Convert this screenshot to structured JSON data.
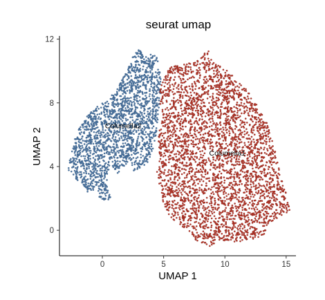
{
  "chart_data": {
    "type": "scatter",
    "title": "seurat umap",
    "xlabel": "UMAP 1",
    "ylabel": "UMAP 2",
    "xlim": [
      -3.5,
      15.8
    ],
    "ylim": [
      -1.6,
      12.2
    ],
    "x_ticks": [
      0,
      5,
      10,
      15
    ],
    "y_ticks": [
      0,
      4,
      8,
      12
    ],
    "grid": false,
    "legend": "none",
    "series": [
      {
        "color": "#4E79A7",
        "edge_color": "#2F4F73",
        "label": "Columella2",
        "label_position": [
          1.7,
          6.4
        ],
        "approx_points": 1900
      },
      {
        "color": "#C0392B",
        "edge_color": "#6E1F17",
        "label": "Columella1",
        "label_position": [
          10.2,
          4.7
        ],
        "approx_points": 3400
      }
    ]
  }
}
